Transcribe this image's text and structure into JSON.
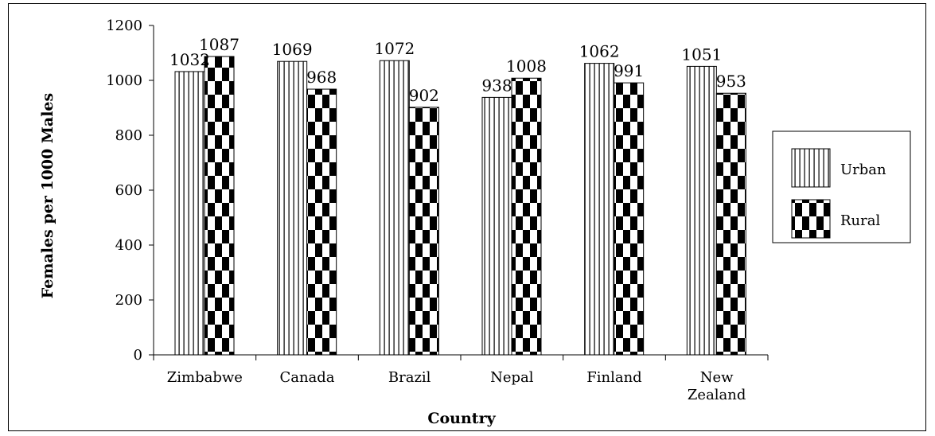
{
  "chart_data": {
    "type": "bar",
    "categories": [
      "Zimbabwe",
      "Canada",
      "Brazil",
      "Nepal",
      "Finland",
      "New Zealand"
    ],
    "series": [
      {
        "name": "Urban",
        "values": [
          1032,
          1069,
          1072,
          938,
          1062,
          1051
        ],
        "pattern": "vertical-stripes"
      },
      {
        "name": "Rural",
        "values": [
          1087,
          968,
          902,
          1008,
          991,
          953
        ],
        "pattern": "checkerboard"
      }
    ],
    "xlabel": "Country",
    "ylabel": "Females per 1000 Males",
    "ylim": [
      0,
      1200
    ],
    "yticks": [
      0,
      200,
      400,
      600,
      800,
      1000,
      1200
    ],
    "grid": false,
    "legend_position": "right",
    "colors": {
      "bar_fill": "#ffffff",
      "pattern": "#000000",
      "axis": "#000000"
    }
  }
}
